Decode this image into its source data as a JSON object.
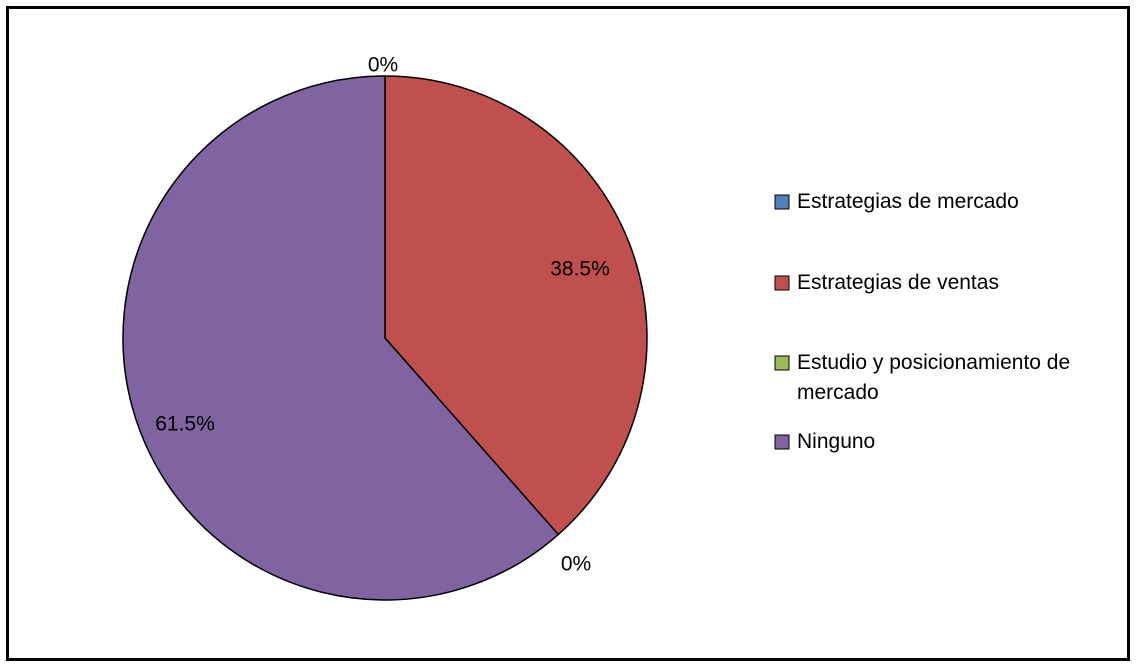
{
  "chart_data": {
    "type": "pie",
    "title": "",
    "categories": [
      "Estrategias de mercado",
      "Estrategias de ventas",
      "Estudio y posicionamiento de mercado",
      "Ninguno"
    ],
    "values": [
      0,
      38.5,
      0,
      61.5
    ],
    "value_labels": [
      "0%",
      "38.5%",
      "0%",
      "61.5%"
    ],
    "colors": [
      "#4f81bd",
      "#c0504d",
      "#9bbb59",
      "#8064a2"
    ],
    "start_angle": "12 o'clock",
    "direction": "clockwise",
    "legend_position": "right"
  }
}
